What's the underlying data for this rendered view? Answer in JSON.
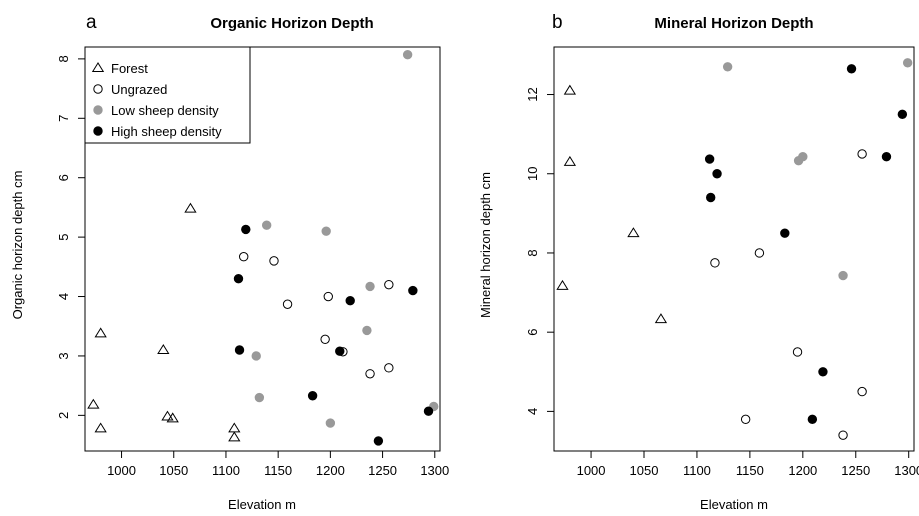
{
  "chart_data": [
    {
      "type": "scatter",
      "panel_label": "a",
      "title": "Organic Horizon Depth",
      "xlabel": "Elevation m",
      "ylabel": "Organic horizon depth cm",
      "xlim": [
        965,
        1305
      ],
      "ylim": [
        1.4,
        8.2
      ],
      "xticks": [
        1000,
        1050,
        1100,
        1150,
        1200,
        1250,
        1300
      ],
      "yticks": [
        2,
        3,
        4,
        5,
        6,
        7,
        8
      ],
      "legend": {
        "placement": "top-left",
        "entries": [
          {
            "name": "Forest",
            "marker": "open-triangle",
            "color": "#000000"
          },
          {
            "name": "Ungrazed",
            "marker": "open-circle",
            "color": "#000000"
          },
          {
            "name": "Low sheep density",
            "marker": "filled-circle",
            "color": "#999999"
          },
          {
            "name": "High sheep density",
            "marker": "filled-circle",
            "color": "#000000"
          }
        ]
      },
      "series": [
        {
          "name": "Forest",
          "points": [
            [
              973,
              2.18
            ],
            [
              980,
              1.78
            ],
            [
              980,
              3.38
            ],
            [
              1040,
              3.1
            ],
            [
              1044,
              1.98
            ],
            [
              1049,
              1.95
            ],
            [
              1066,
              5.48
            ],
            [
              1108,
              1.78
            ],
            [
              1108,
              1.63
            ]
          ]
        },
        {
          "name": "Ungrazed",
          "points": [
            [
              1117,
              4.67
            ],
            [
              1146,
              4.6
            ],
            [
              1159,
              3.87
            ],
            [
              1195,
              3.28
            ],
            [
              1198,
              4.0
            ],
            [
              1212,
              3.07
            ],
            [
              1238,
              2.7
            ],
            [
              1256,
              4.2
            ],
            [
              1256,
              2.8
            ]
          ]
        },
        {
          "name": "Low sheep density",
          "points": [
            [
              1129,
              3.0
            ],
            [
              1132,
              2.3
            ],
            [
              1139,
              5.2
            ],
            [
              1196,
              5.1
            ],
            [
              1200,
              1.87
            ],
            [
              1235,
              3.43
            ],
            [
              1238,
              4.17
            ],
            [
              1274,
              8.07
            ],
            [
              1299,
              2.15
            ]
          ]
        },
        {
          "name": "High sheep density",
          "points": [
            [
              1112,
              4.3
            ],
            [
              1113,
              3.1
            ],
            [
              1119,
              5.13
            ],
            [
              1183,
              2.33
            ],
            [
              1209,
              3.08
            ],
            [
              1219,
              3.93
            ],
            [
              1246,
              1.57
            ],
            [
              1279,
              4.1
            ],
            [
              1294,
              2.07
            ]
          ]
        }
      ]
    },
    {
      "type": "scatter",
      "panel_label": "b",
      "title": "Mineral Horizon Depth",
      "xlabel": "Elevation m",
      "ylabel": "Mineral horizon depth cm",
      "xlim": [
        965,
        1305
      ],
      "ylim": [
        3.0,
        13.2
      ],
      "xticks": [
        1000,
        1050,
        1100,
        1150,
        1200,
        1250,
        1300
      ],
      "yticks": [
        4,
        6,
        8,
        10,
        12
      ],
      "series": [
        {
          "name": "Forest",
          "points": [
            [
              973,
              7.17
            ],
            [
              980,
              12.1
            ],
            [
              980,
              10.3
            ],
            [
              1040,
              8.5
            ],
            [
              1066,
              6.33
            ]
          ]
        },
        {
          "name": "Ungrazed",
          "points": [
            [
              1117,
              7.75
            ],
            [
              1146,
              3.8
            ],
            [
              1159,
              8.0
            ],
            [
              1195,
              5.5
            ],
            [
              1238,
              3.4
            ],
            [
              1256,
              10.5
            ],
            [
              1256,
              4.5
            ]
          ]
        },
        {
          "name": "Low sheep density",
          "points": [
            [
              1129,
              12.7
            ],
            [
              1196,
              10.33
            ],
            [
              1200,
              10.43
            ],
            [
              1238,
              7.43
            ],
            [
              1299,
              12.8
            ]
          ]
        },
        {
          "name": "High sheep density",
          "points": [
            [
              1112,
              10.37
            ],
            [
              1113,
              9.4
            ],
            [
              1119,
              10.0
            ],
            [
              1183,
              8.5
            ],
            [
              1209,
              3.8
            ],
            [
              1219,
              5.0
            ],
            [
              1246,
              12.65
            ],
            [
              1279,
              10.43
            ],
            [
              1294,
              11.5
            ]
          ]
        }
      ]
    }
  ]
}
